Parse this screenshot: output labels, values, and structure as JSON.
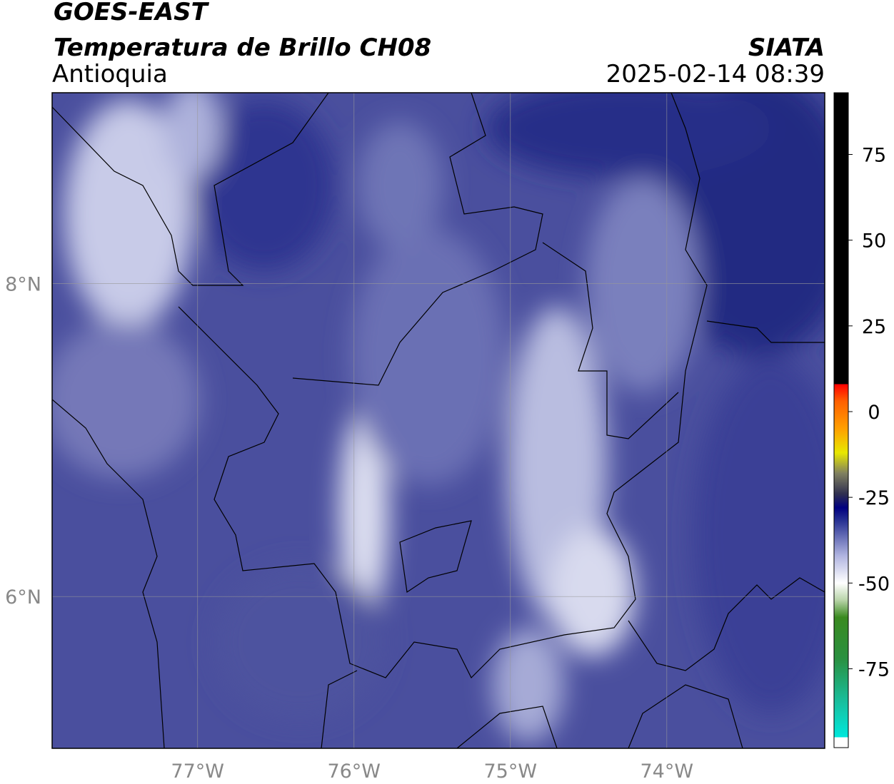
{
  "header": {
    "title": "GOES-EAST",
    "subtitle": "Temperatura de Brillo CH08",
    "region": "Antioquia",
    "source": "SIATA",
    "datetime": "2025-02-14 08:39"
  },
  "map": {
    "xlim": [
      -77.93,
      -72.99
    ],
    "ylim": [
      5.03,
      9.22
    ],
    "xticks": [
      {
        "value": -77,
        "label": "77°W"
      },
      {
        "value": -76,
        "label": "76°W"
      },
      {
        "value": -75,
        "label": "75°W"
      },
      {
        "value": -74,
        "label": "74°W"
      }
    ],
    "yticks": [
      {
        "value": 8,
        "label": "8°N"
      },
      {
        "value": 6,
        "label": "6°N"
      }
    ],
    "grid": true
  },
  "colorbar": {
    "clim": [
      -98,
      93
    ],
    "ticks": [
      75,
      50,
      25,
      0,
      -25,
      -50,
      -75
    ],
    "colormap": [
      [
        -95,
        "#ffffff"
      ],
      [
        -95,
        "#00e8dc"
      ],
      [
        -85,
        "#18c0a0"
      ],
      [
        -72,
        "#2a9040"
      ],
      [
        -60,
        "#3a8a20"
      ],
      [
        -55,
        "#b8d4a8"
      ],
      [
        -50,
        "#ffffff"
      ],
      [
        -42,
        "#b0b4e0"
      ],
      [
        -32,
        "#2a3494"
      ],
      [
        -28,
        "#000080"
      ],
      [
        -24,
        "#303050"
      ],
      [
        -18,
        "#808060"
      ],
      [
        -12,
        "#e8e800"
      ],
      [
        -5,
        "#ffa000"
      ],
      [
        3,
        "#ff6000"
      ],
      [
        8,
        "#ff0000"
      ],
      [
        8,
        "#000000"
      ]
    ]
  }
}
